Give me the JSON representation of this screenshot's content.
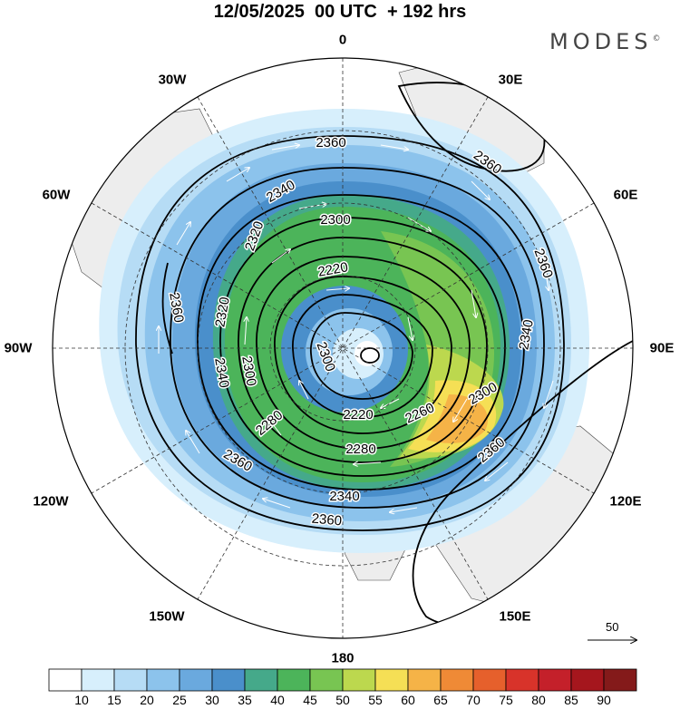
{
  "title": "12/05/2025  00 UTC  + 192 hrs",
  "brand": {
    "name": "MODES",
    "mark": "©"
  },
  "longitude_labels": [
    {
      "id": "0",
      "text": "0"
    },
    {
      "id": "30E",
      "text": "30E"
    },
    {
      "id": "60E",
      "text": "60E"
    },
    {
      "id": "90E",
      "text": "90E"
    },
    {
      "id": "120E",
      "text": "120E"
    },
    {
      "id": "150E",
      "text": "150E"
    },
    {
      "id": "180",
      "text": "180"
    },
    {
      "id": "150W",
      "text": "150W"
    },
    {
      "id": "120W",
      "text": "120W"
    },
    {
      "id": "90W",
      "text": "90W"
    },
    {
      "id": "60W",
      "text": "60W"
    },
    {
      "id": "30W",
      "text": "30W"
    }
  ],
  "contour_labels": [
    "2220",
    "2260",
    "2280",
    "2300",
    "2320",
    "2340",
    "2360"
  ],
  "reference_vector": {
    "value": "50"
  },
  "colorbar": {
    "ticks": [
      "10",
      "15",
      "20",
      "25",
      "30",
      "35",
      "40",
      "45",
      "50",
      "55",
      "60",
      "65",
      "70",
      "75",
      "80",
      "85",
      "90"
    ],
    "colors": [
      "#ffffff",
      "#d7effc",
      "#b6dcf5",
      "#8cc3ec",
      "#6aa9de",
      "#4a8fcb",
      "#45a98a",
      "#4cb45a",
      "#78c552",
      "#bcd84e",
      "#f5df55",
      "#f5b347",
      "#ef8a36",
      "#e6602c",
      "#d8332a",
      "#c4202a",
      "#a5161d",
      "#841a1a"
    ]
  }
}
